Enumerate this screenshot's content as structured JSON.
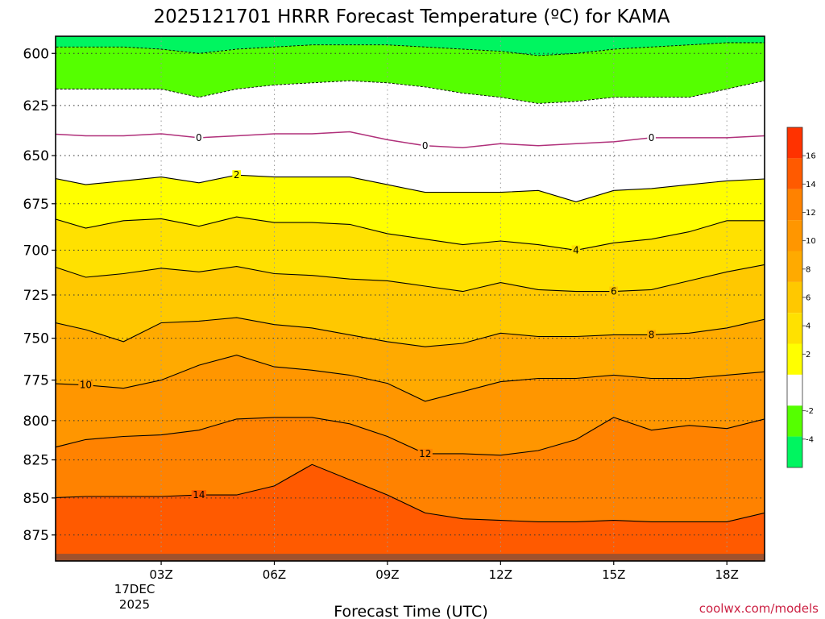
{
  "chart_data": {
    "type": "heatmap",
    "title": "2025121701 HRRR Forecast Temperature (ºC) for KAMA",
    "xlabel": "Forecast Time (UTC)",
    "x_ticks": [
      "03Z",
      "06Z",
      "09Z",
      "12Z",
      "15Z",
      "18Z"
    ],
    "x_date_line1": "17DEC",
    "x_date_line2": "2025",
    "x_hours": [
      0,
      1,
      2,
      3,
      4,
      5,
      6,
      7,
      8,
      9,
      10,
      11,
      12,
      13,
      14,
      15,
      16,
      17,
      18,
      19
    ],
    "xlim": [
      0.2,
      19.0
    ],
    "y_levels": [
      600,
      625,
      650,
      675,
      700,
      725,
      750,
      775,
      800,
      825,
      850,
      875
    ],
    "ylim": [
      592,
      893
    ],
    "y_scale": "log",
    "grid": true,
    "colorbar": {
      "position": "right",
      "tick_labels": [
        "16",
        "14",
        "12",
        "10",
        "8",
        "6",
        "4",
        "2",
        "-2",
        "-4"
      ],
      "bands": [
        {
          "min": -6,
          "max": -4,
          "color": "#00f560"
        },
        {
          "min": -4,
          "max": -2,
          "color": "#55ff00"
        },
        {
          "min": -2,
          "max": 2,
          "color": "#ffffff"
        },
        {
          "min": 2,
          "max": 4,
          "color": "#ffff00"
        },
        {
          "min": 4,
          "max": 6,
          "color": "#ffe100"
        },
        {
          "min": 6,
          "max": 8,
          "color": "#ffc800"
        },
        {
          "min": 8,
          "max": 10,
          "color": "#ffaa00"
        },
        {
          "min": 10,
          "max": 12,
          "color": "#ff9600"
        },
        {
          "min": 12,
          "max": 14,
          "color": "#ff8200"
        },
        {
          "min": 14,
          "max": 16,
          "color": "#ff5a00"
        },
        {
          "min": 16,
          "max": 18,
          "color": "#ff3200"
        }
      ]
    },
    "ground_color": "#a0522d",
    "ground_level_hpa": 888,
    "isotherms": [
      {
        "t": -4,
        "color": "#00f560",
        "style": "dashed",
        "levels": [
          597,
          597,
          597,
          598,
          600,
          598,
          597,
          596,
          596,
          596,
          597,
          598,
          599,
          601,
          600,
          598,
          597,
          596,
          595,
          595
        ]
      },
      {
        "t": -2,
        "color": "#55ff00",
        "style": "dashed",
        "levels": [
          617,
          617,
          617,
          617,
          621,
          617,
          615,
          614,
          613,
          614,
          616,
          619,
          621,
          624,
          623,
          621,
          621,
          621,
          617,
          613
        ]
      },
      {
        "t": 0,
        "color": "#b0307a",
        "style": "solid",
        "label_at": [
          4,
          10,
          16
        ],
        "levels": [
          639,
          640,
          640,
          639,
          641,
          640,
          639,
          639,
          638,
          642,
          645,
          646,
          644,
          645,
          644,
          643,
          641,
          641,
          641,
          640
        ]
      },
      {
        "t": 2,
        "color": "#000000",
        "style": "solid",
        "label_at": [
          5
        ],
        "levels": [
          661,
          665,
          663,
          661,
          664,
          660,
          661,
          661,
          661,
          665,
          669,
          669,
          669,
          668,
          674,
          668,
          667,
          665,
          663,
          662
        ]
      },
      {
        "t": 4,
        "color": "#000000",
        "style": "solid",
        "label_at": [
          14
        ],
        "levels": [
          682,
          688,
          684,
          683,
          687,
          682,
          685,
          685,
          686,
          691,
          694,
          697,
          695,
          697,
          700,
          696,
          694,
          690,
          684,
          684
        ]
      },
      {
        "t": 6,
        "color": "#000000",
        "style": "solid",
        "label_at": [
          15
        ],
        "levels": [
          708,
          715,
          713,
          710,
          712,
          709,
          713,
          714,
          716,
          717,
          720,
          723,
          718,
          722,
          723,
          723,
          722,
          717,
          712,
          708
        ]
      },
      {
        "t": 8,
        "color": "#000000",
        "style": "solid",
        "label_at": [
          16
        ],
        "levels": [
          740,
          745,
          752,
          741,
          740,
          738,
          742,
          744,
          748,
          752,
          755,
          753,
          747,
          749,
          749,
          748,
          748,
          747,
          744,
          739
        ]
      },
      {
        "t": 10,
        "color": "#000000",
        "style": "solid",
        "label_at": [
          1
        ],
        "levels": [
          777,
          778,
          780,
          775,
          766,
          760,
          767,
          769,
          772,
          777,
          788,
          782,
          776,
          774,
          774,
          772,
          774,
          774,
          772,
          770
        ]
      },
      {
        "t": 12,
        "color": "#000000",
        "style": "solid",
        "label_at": [
          10
        ],
        "levels": [
          818,
          812,
          810,
          809,
          806,
          799,
          798,
          798,
          802,
          810,
          821,
          821,
          822,
          819,
          812,
          798,
          806,
          803,
          805,
          799
        ]
      },
      {
        "t": 14,
        "color": "#000000",
        "style": "solid",
        "label_at": [
          4
        ],
        "levels": [
          850,
          849,
          849,
          849,
          848,
          848,
          842,
          828,
          838,
          848,
          860,
          864,
          865,
          866,
          866,
          865,
          866,
          866,
          866,
          860
        ]
      }
    ]
  },
  "credit": "coolwx.com/models"
}
